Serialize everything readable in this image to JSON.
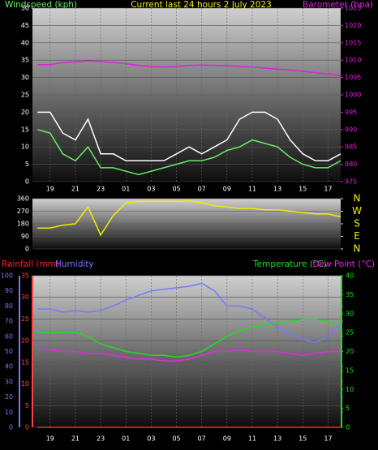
{
  "chart_data": [
    {
      "type": "line",
      "title": "Current last 24 hours 2 July 2023",
      "x": [
        18,
        19,
        20,
        21,
        22,
        23,
        24,
        25,
        26,
        27,
        28,
        29,
        30,
        31,
        32,
        33,
        34,
        35,
        36,
        37,
        38,
        39,
        40,
        41,
        42
      ],
      "xlim": [
        17.6,
        42
      ],
      "xticks": [
        19,
        21,
        23,
        {
          "value": 25,
          "label": "01"
        },
        {
          "value": 27,
          "label": "03"
        },
        {
          "value": 29,
          "label": "05"
        },
        {
          "value": 31,
          "label": "07"
        },
        {
          "value": 33,
          "label": "09"
        },
        {
          "value": 35,
          "label": "11"
        },
        {
          "value": 37,
          "label": "13"
        },
        {
          "value": 39,
          "label": "15"
        },
        {
          "value": 41,
          "label": "17"
        }
      ],
      "ylim": [
        0,
        50
      ],
      "yticks": [
        0,
        5,
        10,
        15,
        20,
        25,
        30,
        35,
        40,
        45,
        50
      ],
      "y2lim": [
        975,
        1025
      ],
      "y2ticks": [
        975,
        980,
        985,
        990,
        995,
        1000,
        1005,
        1010,
        1015,
        1020,
        1025
      ],
      "series": [
        {
          "color": "#ffffff",
          "values": [
            20,
            20,
            14,
            12,
            18,
            8,
            8,
            6,
            6,
            6,
            6,
            8,
            10,
            8,
            10,
            12,
            18,
            20,
            20,
            18,
            12,
            8,
            6,
            6,
            8
          ]
        },
        {
          "name": "Windspeed (kph)",
          "color": "#66ee66",
          "values": [
            15,
            14,
            8,
            6,
            10,
            4,
            4,
            3,
            2,
            3,
            4,
            5,
            6,
            6,
            7,
            9,
            10,
            12,
            11,
            10,
            7,
            5,
            4,
            4,
            6
          ]
        },
        {
          "name": "Barometer (hpa)",
          "color": "#dd22dd",
          "axis": "y2",
          "values": [
            1008.7,
            1008.7,
            1009.3,
            1009.5,
            1009.8,
            1009.6,
            1009.3,
            1009,
            1008.5,
            1008.2,
            1008,
            1008.2,
            1008.5,
            1008.6,
            1008.5,
            1008.4,
            1008.2,
            1008,
            1007.7,
            1007.4,
            1007.2,
            1006.8,
            1006.4,
            1006,
            1005.6
          ]
        }
      ]
    },
    {
      "type": "line",
      "x": [
        18,
        19,
        20,
        21,
        22,
        23,
        24,
        25,
        26,
        27,
        28,
        29,
        30,
        31,
        32,
        33,
        34,
        35,
        36,
        37,
        38,
        39,
        40,
        41,
        42
      ],
      "xlim": [
        17.6,
        42
      ],
      "ylim": [
        0,
        360
      ],
      "yticks": [
        0,
        90,
        180,
        270,
        360
      ],
      "y2lim": [
        0,
        360
      ],
      "y2ticks": [
        {
          "value": 0,
          "label": "N"
        },
        {
          "value": 90,
          "label": "E"
        },
        {
          "value": 180,
          "label": "S"
        },
        {
          "value": 270,
          "label": "W"
        },
        {
          "value": 360,
          "label": "N"
        }
      ],
      "series": [
        {
          "color": "#eeee00",
          "values": [
            150,
            150,
            170,
            180,
            300,
            100,
            240,
            330,
            340,
            340,
            340,
            340,
            345,
            330,
            310,
            300,
            290,
            290,
            280,
            280,
            270,
            260,
            250,
            250,
            230
          ]
        }
      ]
    },
    {
      "type": "line",
      "x": [
        18,
        19,
        20,
        21,
        22,
        23,
        24,
        25,
        26,
        27,
        28,
        29,
        30,
        31,
        32,
        33,
        34,
        35,
        36,
        37,
        38,
        39,
        40,
        41,
        42
      ],
      "xlim": [
        17.6,
        42
      ],
      "xticks": [
        19,
        21,
        23,
        {
          "value": 25,
          "label": "01"
        },
        {
          "value": 27,
          "label": "03"
        },
        {
          "value": 29,
          "label": "05"
        },
        {
          "value": 31,
          "label": "07"
        },
        {
          "value": 33,
          "label": "09"
        },
        {
          "value": 35,
          "label": "11"
        },
        {
          "value": 37,
          "label": "13"
        },
        {
          "value": 39,
          "label": "15"
        },
        {
          "value": 41,
          "label": "17"
        }
      ],
      "ylim": [
        0,
        35
      ],
      "yticks": [
        0,
        5,
        10,
        15,
        20,
        25,
        30,
        35
      ],
      "y2lim": [
        0,
        40
      ],
      "y2ticks": [
        0,
        5,
        10,
        15,
        20,
        25,
        30,
        35,
        40
      ],
      "y3lim": [
        0,
        100
      ],
      "y3ticks": [
        0,
        10,
        20,
        30,
        40,
        50,
        60,
        70,
        80,
        90,
        100
      ],
      "series": [
        {
          "name": "Rainfall (mm)",
          "color": "#ff2222",
          "values": [
            0,
            0,
            0,
            0,
            0,
            0,
            0,
            0,
            0,
            0,
            0,
            0,
            0,
            0,
            0,
            0,
            0,
            0,
            0,
            0,
            0,
            0,
            0,
            0,
            0
          ]
        },
        {
          "name": "Humidity",
          "color": "#7777ff",
          "axis": "y3",
          "values": [
            78,
            78,
            76,
            77,
            76,
            77,
            80,
            84,
            87,
            90,
            91,
            92,
            93,
            95,
            90,
            80,
            80,
            78,
            72,
            66,
            62,
            58,
            56,
            60,
            68
          ]
        },
        {
          "name": "Temperature (°C)",
          "color": "#22dd22",
          "axis": "y2",
          "values": [
            25,
            25,
            25,
            25,
            24,
            22,
            21,
            20,
            19.5,
            19,
            19,
            18.5,
            19,
            20,
            22,
            24,
            25.5,
            26.5,
            27,
            27.5,
            28,
            28.5,
            28.5,
            28,
            27
          ]
        },
        {
          "name": "Dew Point (°C)",
          "color": "#ee22ee",
          "axis": "y2",
          "values": [
            20.5,
            20.5,
            20,
            20,
            19.5,
            19.5,
            19,
            18.5,
            18,
            18,
            17.5,
            17.5,
            18,
            19,
            20,
            20,
            20.5,
            20,
            20,
            20,
            19.5,
            19,
            19.5,
            20,
            20
          ]
        }
      ]
    }
  ]
}
